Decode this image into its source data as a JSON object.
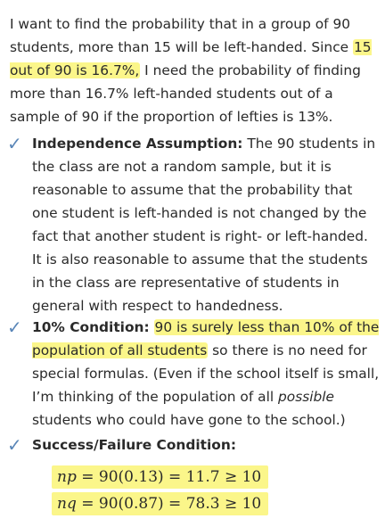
{
  "intro": {
    "text_before": "I want to find the probability that in a group of 90 students, more than 15 will be left-handed. Since ",
    "highlight": "15 out of 90 is 16.7%,",
    "text_after": " I need the probability of finding more than 16.7% left-handed students out of a sample of 90 if the proportion of lefties is 13%."
  },
  "independence": {
    "check": "✓",
    "heading": "Independence Assumption:",
    "body": " The 90 students in the class are not a random sample, but it is reasonable to assume that the probability that one student is left-handed is not changed by the fact that another student is right- or left-handed. It is also reasonable to assume that the students in the class are representative of students in general with respect to handedness."
  },
  "ten_percent": {
    "check": "✓",
    "heading": "10% Condition:",
    "highlight": "90 is surely less than 10% of the population of all students",
    "body_a": " so there is no need for special formulas. (Even if the school itself is small, I’m thinking of the population of all ",
    "body_italic": "possible",
    "body_b": " students who could have gone to the school.)"
  },
  "success_failure": {
    "check": "✓",
    "heading": "Success/Failure Condition:",
    "eq1_var": "np",
    "eq1_rest": " = 90(0.13) = 11.7 ≥ 10",
    "eq2_var": "nq",
    "eq2_rest": " = 90(0.87) = 78.3 ≥ 10"
  }
}
